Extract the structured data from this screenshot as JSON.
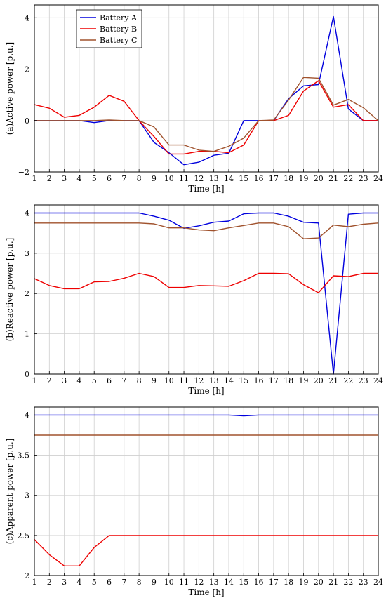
{
  "legend": {
    "entries": [
      {
        "name": "Battery A",
        "color": "#0000dd"
      },
      {
        "name": "Battery B",
        "color": "#ee0000"
      },
      {
        "name": "Battery C",
        "color": "#a0522d"
      }
    ],
    "placement": "top-left"
  },
  "chart_data": [
    {
      "type": "line",
      "title": "",
      "xlabel": "Time [h]",
      "ylabel": "(a)Active power [p.u.]",
      "xlim": [
        1,
        24
      ],
      "ylim": [
        -2,
        4.5
      ],
      "yticks": [
        -2,
        0,
        2,
        4
      ],
      "ytick_labels": [
        "−2",
        "0",
        "2",
        "4"
      ],
      "grid": true,
      "x": [
        1,
        2,
        3,
        4,
        5,
        6,
        7,
        8,
        9,
        10,
        11,
        12,
        13,
        14,
        15,
        16,
        17,
        18,
        19,
        20,
        21,
        22,
        23,
        24
      ],
      "series": [
        {
          "name": "Battery A",
          "values": [
            0,
            0,
            0,
            0,
            -0.08,
            0,
            0,
            0,
            -0.85,
            -1.25,
            -1.72,
            -1.62,
            -1.35,
            -1.27,
            0,
            0,
            0,
            0.85,
            1.35,
            1.4,
            4.05,
            0.45,
            0,
            0
          ]
        },
        {
          "name": "Battery B",
          "values": [
            0.62,
            0.48,
            0.13,
            0.2,
            0.52,
            0.98,
            0.75,
            0,
            -0.62,
            -1.3,
            -1.3,
            -1.2,
            -1.2,
            -1.25,
            -0.95,
            0,
            0,
            0.2,
            1.15,
            1.55,
            0.52,
            0.62,
            0,
            0
          ]
        },
        {
          "name": "Battery C",
          "values": [
            0,
            0,
            0,
            0,
            0,
            0.02,
            0,
            0,
            -0.25,
            -0.95,
            -0.95,
            -1.15,
            -1.2,
            -1.0,
            -0.68,
            0,
            0.02,
            0.8,
            1.68,
            1.65,
            0.6,
            0.82,
            0.5,
            0
          ]
        }
      ]
    },
    {
      "type": "line",
      "title": "",
      "xlabel": "Time [h]",
      "ylabel": "(b)Reactive power [p.u.]",
      "xlim": [
        1,
        24
      ],
      "ylim": [
        0,
        4.2
      ],
      "yticks": [
        0,
        1,
        2,
        3,
        4
      ],
      "ytick_labels": [
        "0",
        "1",
        "2",
        "3",
        "4"
      ],
      "grid": true,
      "x": [
        1,
        2,
        3,
        4,
        5,
        6,
        7,
        8,
        9,
        10,
        11,
        12,
        13,
        14,
        15,
        16,
        17,
        18,
        19,
        20,
        21,
        22,
        23,
        24
      ],
      "series": [
        {
          "name": "Battery A",
          "values": [
            4,
            4,
            4,
            4,
            4,
            4,
            4,
            4,
            3.92,
            3.82,
            3.62,
            3.68,
            3.77,
            3.8,
            3.98,
            4.0,
            4.0,
            3.92,
            3.77,
            3.75,
            0,
            3.97,
            4.0,
            4.0
          ]
        },
        {
          "name": "Battery B",
          "values": [
            2.37,
            2.2,
            2.12,
            2.12,
            2.29,
            2.3,
            2.38,
            2.5,
            2.42,
            2.15,
            2.15,
            2.2,
            2.19,
            2.18,
            2.32,
            2.5,
            2.5,
            2.49,
            2.22,
            2.02,
            2.44,
            2.42,
            2.5,
            2.5
          ]
        },
        {
          "name": "Battery C",
          "values": [
            3.75,
            3.75,
            3.75,
            3.75,
            3.75,
            3.75,
            3.75,
            3.75,
            3.73,
            3.63,
            3.63,
            3.58,
            3.56,
            3.63,
            3.69,
            3.75,
            3.75,
            3.66,
            3.36,
            3.38,
            3.7,
            3.66,
            3.72,
            3.75
          ]
        }
      ]
    },
    {
      "type": "line",
      "title": "",
      "xlabel": "Time [h]",
      "ylabel": "(c)Apparent power [p.u.]",
      "xlim": [
        1,
        24
      ],
      "ylim": [
        2,
        4.1
      ],
      "yticks": [
        2,
        2.5,
        3,
        3.5,
        4
      ],
      "ytick_labels": [
        "2",
        "2.5",
        "3",
        "3.5",
        "4"
      ],
      "grid": true,
      "x": [
        1,
        2,
        3,
        4,
        5,
        6,
        7,
        8,
        9,
        10,
        11,
        12,
        13,
        14,
        15,
        16,
        17,
        18,
        19,
        20,
        21,
        22,
        23,
        24
      ],
      "series": [
        {
          "name": "Battery A",
          "values": [
            4,
            4,
            4,
            4,
            4,
            4,
            4,
            4,
            4,
            4,
            4,
            4,
            4,
            4,
            3.99,
            4,
            4,
            4,
            4,
            4,
            4,
            4,
            4,
            4
          ]
        },
        {
          "name": "Battery B",
          "values": [
            2.45,
            2.26,
            2.12,
            2.12,
            2.35,
            2.5,
            2.5,
            2.5,
            2.5,
            2.5,
            2.5,
            2.5,
            2.5,
            2.5,
            2.5,
            2.5,
            2.5,
            2.5,
            2.5,
            2.5,
            2.5,
            2.5,
            2.5,
            2.5
          ]
        },
        {
          "name": "Battery C",
          "values": [
            3.75,
            3.75,
            3.75,
            3.75,
            3.75,
            3.75,
            3.75,
            3.75,
            3.75,
            3.75,
            3.75,
            3.75,
            3.75,
            3.75,
            3.75,
            3.75,
            3.75,
            3.75,
            3.75,
            3.75,
            3.75,
            3.75,
            3.75,
            3.75
          ]
        }
      ]
    }
  ]
}
